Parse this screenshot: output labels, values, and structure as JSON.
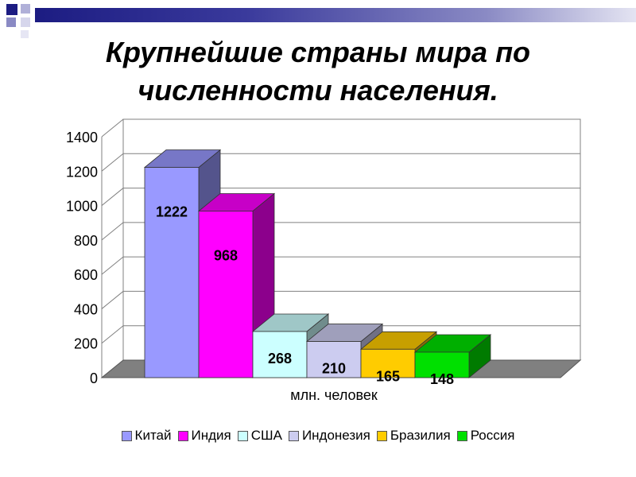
{
  "slide": {
    "title_line1": "Крупнейшие страны мира по",
    "title_line2": "численности населения.",
    "accent_colors": [
      "#1c1c82",
      "#8a8ac4"
    ]
  },
  "chart_data": {
    "type": "bar",
    "title": "",
    "xlabel": "млн. человек",
    "ylabel": "",
    "ylim": [
      0,
      1400
    ],
    "yticks": [
      0,
      200,
      400,
      600,
      800,
      1000,
      1200,
      1400
    ],
    "grid": true,
    "legend_position": "bottom",
    "series": [
      {
        "name": "Китай",
        "value": 1222,
        "color": "#9999ff"
      },
      {
        "name": "Индия",
        "value": 968,
        "color": "#ff00ff"
      },
      {
        "name": "США",
        "value": 268,
        "color": "#ccffff"
      },
      {
        "name": "Индонезия",
        "value": 210,
        "color": "#ccccf0"
      },
      {
        "name": "Бразилия",
        "value": 165,
        "color": "#ffcc00"
      },
      {
        "name": "Россия",
        "value": 148,
        "color": "#00e000"
      }
    ]
  }
}
